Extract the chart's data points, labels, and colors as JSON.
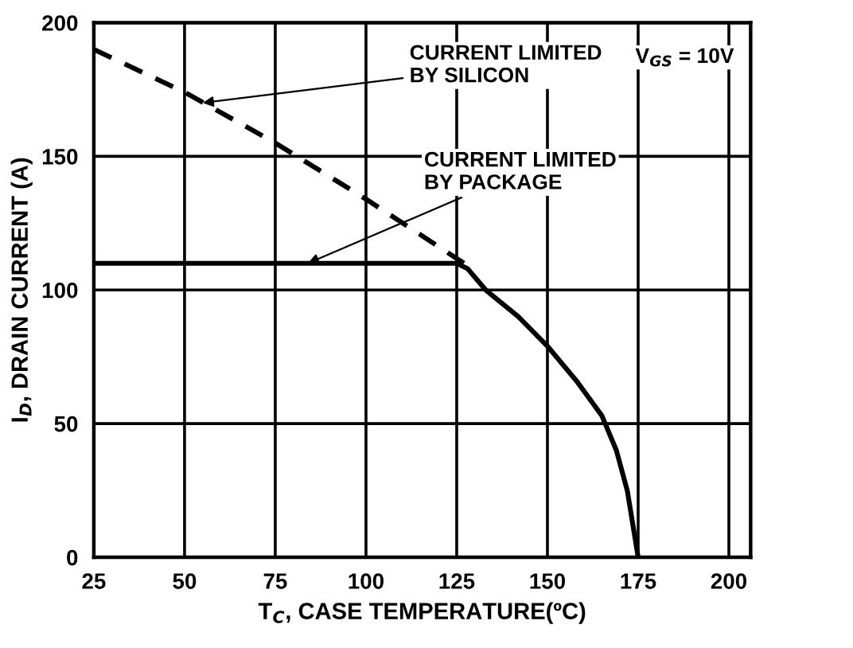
{
  "chart_data": {
    "type": "line",
    "xlabel": "T$_{C}$, CASE TEMPERATURE(ºC)",
    "ylabel": "I$_{D}$, DRAIN CURRENT (A)",
    "series": [
      {
        "color": "#000000",
        "line_style": "dashed",
        "x": [
          25,
          50,
          75,
          100,
          127
        ],
        "values": [
          190,
          174,
          155,
          134,
          110
        ]
      },
      {
        "color": "#000000",
        "line_style": "solid",
        "x": [
          25,
          125,
          128,
          133,
          142,
          150,
          158,
          165,
          169,
          172,
          175
        ],
        "values": [
          110,
          110,
          108,
          100,
          90,
          79,
          66,
          53,
          40,
          25,
          0
        ]
      }
    ],
    "annotations": [
      {
        "text": "CURRENT LIMITED\nBY SILICON",
        "x": 55,
        "y": 170
      },
      {
        "text": "CURRENT LIMITED\nBY PACKAGE",
        "x": 84,
        "y": 110
      },
      "V$_{GS}$ = 10V"
    ],
    "xlim": [
      25,
      206
    ],
    "ylim": [
      0,
      200
    ],
    "xticks": [
      25,
      50,
      75,
      100,
      125,
      150,
      175,
      200
    ],
    "yticks": [
      0,
      50,
      100,
      150,
      200
    ],
    "grid": true,
    "legend": false
  }
}
